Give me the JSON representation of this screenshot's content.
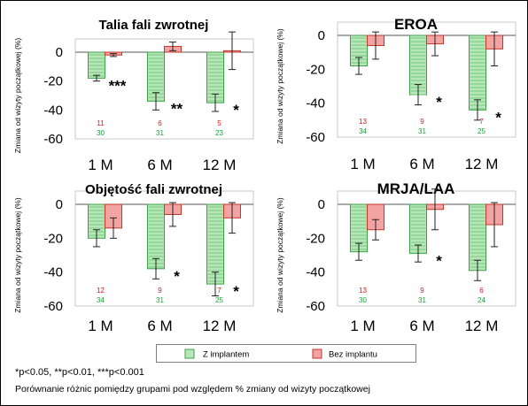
{
  "colors": {
    "with_implant_fill": "#b9e6b9",
    "with_implant_stroke": "#3fa04a",
    "without_implant_fill": "#f4a3a3",
    "without_implant_stroke": "#c0392b",
    "count_red": "#d11a1a",
    "count_green": "#1a9e3a"
  },
  "legend": {
    "with_implant": "Z implantem",
    "without_implant": "Bez implantu"
  },
  "footnote": "*p<0.05, **p<0.01, ***p<0.001",
  "comparison_note": "Porównanie różnic pomiędzy grupami pod względem % zmiany od wizyty początkowej",
  "chart_data": [
    {
      "type": "bar",
      "title": "Talia fali zwrotnej",
      "ylabel": "Zmiana od wizyty początkowej (%)",
      "ylim": [
        -60,
        0
      ],
      "yticks": [
        "0",
        "-20",
        "-40",
        "-60"
      ],
      "categories": [
        "1 M",
        "6 M",
        "12 M"
      ],
      "series": [
        {
          "name": "Z implantem",
          "values": [
            -18,
            -34,
            -35
          ],
          "error": [
            2,
            6,
            6
          ],
          "n": [
            "30",
            "31",
            "23"
          ]
        },
        {
          "name": "Bez implantu",
          "values": [
            -2,
            4,
            1
          ],
          "error": [
            1,
            3,
            13
          ],
          "n": [
            "11",
            "6",
            "5"
          ]
        }
      ],
      "significance": [
        "***",
        "**",
        "*"
      ]
    },
    {
      "type": "bar",
      "title": "EROA",
      "ylabel": "Zmiana od wizyty początkowej (%)",
      "ylim": [
        -60,
        0
      ],
      "yticks": [
        "0",
        "-20",
        "-40",
        "-60"
      ],
      "categories": [
        "1 M",
        "6 M",
        "12 M"
      ],
      "series": [
        {
          "name": "Z implantem",
          "values": [
            -18,
            -35,
            -44
          ],
          "error": [
            5,
            6,
            6
          ],
          "n": [
            "34",
            "31",
            "25"
          ]
        },
        {
          "name": "Bez implantu",
          "values": [
            -6,
            -5,
            -8
          ],
          "error": [
            8,
            7,
            10
          ],
          "n": [
            "13",
            "9",
            "7"
          ]
        }
      ],
      "significance": [
        "",
        "*",
        "*"
      ]
    },
    {
      "type": "bar",
      "title": "Objętość fali zwrotnej",
      "ylabel": "Zmiana od wizyty początkowej (%)",
      "ylim": [
        -60,
        0
      ],
      "yticks": [
        "0",
        "-20",
        "-40",
        "-60"
      ],
      "categories": [
        "1 M",
        "6 M",
        "12 M"
      ],
      "series": [
        {
          "name": "Z implantem",
          "values": [
            -20,
            -38,
            -47
          ],
          "error": [
            5,
            6,
            7
          ],
          "n": [
            "34",
            "31",
            "25"
          ]
        },
        {
          "name": "Bez implantu",
          "values": [
            -14,
            -6,
            -8
          ],
          "error": [
            6,
            7,
            9
          ],
          "n": [
            "12",
            "9",
            "7"
          ]
        }
      ],
      "significance": [
        "",
        "*",
        "*"
      ]
    },
    {
      "type": "bar",
      "title": "MRJA/LAA",
      "ylabel": "Zmiana od wizyty początkowej (%)",
      "ylim": [
        -60,
        0
      ],
      "yticks": [
        "0",
        "-20",
        "-40",
        "-60"
      ],
      "categories": [
        "1 M",
        "6 M",
        "12 M"
      ],
      "series": [
        {
          "name": "Z implantem",
          "values": [
            -28,
            -29,
            -39
          ],
          "error": [
            5,
            5,
            6
          ],
          "n": [
            "30",
            "31",
            "24"
          ]
        },
        {
          "name": "Bez implantu",
          "values": [
            -15,
            -3,
            -12
          ],
          "error": [
            6,
            12,
            13
          ],
          "n": [
            "13",
            "9",
            "6"
          ]
        }
      ],
      "significance": [
        "",
        "*",
        ""
      ]
    }
  ]
}
